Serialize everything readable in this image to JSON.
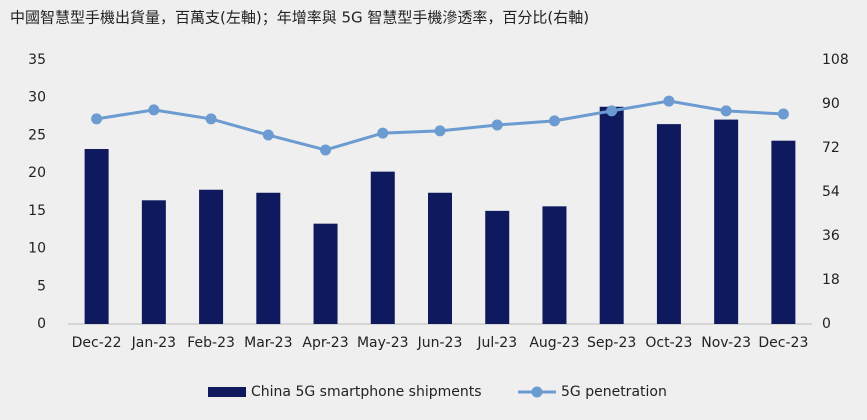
{
  "chart_data": {
    "type": "bar-line",
    "title": "中國智慧型手機出貨量，百萬支(左軸)；年增率與 5G 智慧型手機滲透率，百分比(右軸)",
    "categories": [
      "Dec-22",
      "Jan-23",
      "Feb-23",
      "Mar-23",
      "Apr-23",
      "May-23",
      "Jun-23",
      "Jul-23",
      "Aug-23",
      "Sep-23",
      "Oct-23",
      "Nov-23",
      "Dec-23"
    ],
    "series": [
      {
        "name": "China 5G smartphone shipments",
        "type": "bar",
        "color": "#0f1a5e",
        "values": [
          23.2,
          16.4,
          17.8,
          17.4,
          13.3,
          20.2,
          17.4,
          15.0,
          15.6,
          28.8,
          26.5,
          27.1,
          24.3
        ]
      },
      {
        "name": "5G penetration",
        "type": "line",
        "axis": "y2",
        "color": "#6b9bd0",
        "values": [
          83.9,
          87.6,
          83.9,
          77.3,
          71.2,
          78.1,
          79.0,
          81.4,
          83.1,
          87.2,
          91.2,
          87.2,
          85.9
        ]
      }
    ],
    "ylim": [
      0,
      35
    ],
    "yticks": [
      0,
      5,
      10,
      15,
      20,
      25,
      30,
      35
    ],
    "y2lim": [
      0,
      108
    ],
    "y2ticks": [
      0,
      18,
      36,
      54,
      72,
      90,
      108
    ],
    "legend": "bottom"
  }
}
